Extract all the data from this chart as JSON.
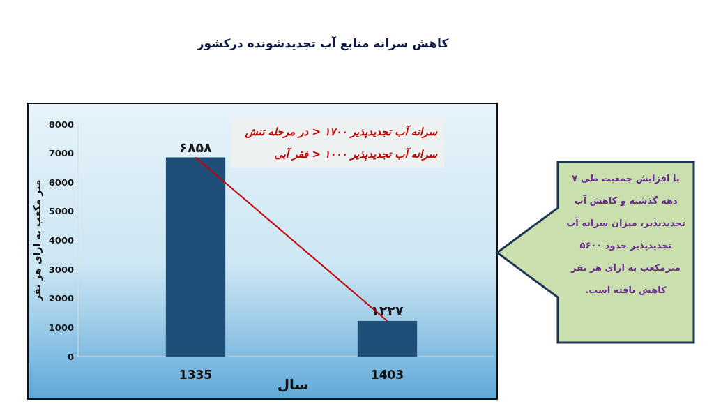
{
  "chart_data": {
    "type": "bar",
    "title": "کاهش سرانه منابع آب تجدیدشونده درکشور",
    "xlabel": "سال",
    "ylabel": "متر مکعب به ازای هر نفر",
    "categories": [
      "1335",
      "1403"
    ],
    "series": [
      {
        "color": "#1f4e79",
        "values": [
          6858,
          1227
        ],
        "value_labels": [
          "۶۸۵۸",
          "۱۲۲۷"
        ]
      },
      {
        "type": "line",
        "color": "#c00000",
        "values": [
          6858,
          1227
        ]
      }
    ],
    "ylim": [
      0,
      8000
    ],
    "yticks": [
      0,
      1000,
      2000,
      3000,
      4000,
      5000,
      6000,
      7000,
      8000
    ],
    "grid": false,
    "marker": "none",
    "annotations": [
      "سرانه آب تجدیدپذیر ۱۷۰۰ < در مرحله تنش",
      "سرانه آب تجدیدپذیر ۱۰۰۰ < فقر آبی",
      "با افزایش جمعیت طی ۷ دهه گذشته و کاهش آب تجدیدپذیر، میزان سرانه آب تجدیدپذیر حدود ۵۶۰۰ مترمکعب به ازای هر نفر کاهش یافته است."
    ]
  }
}
